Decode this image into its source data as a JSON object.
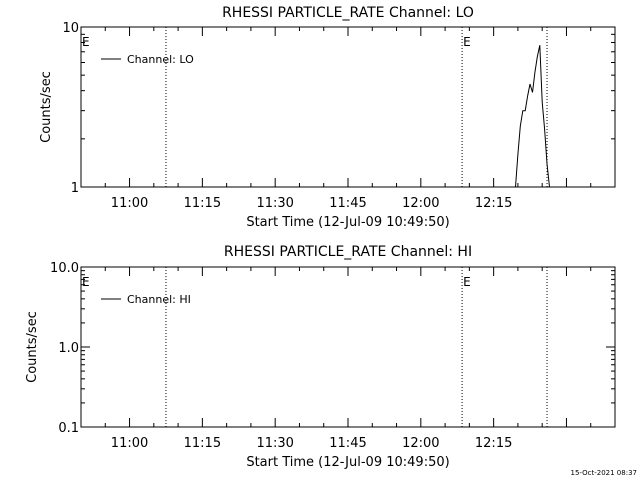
{
  "footer": {
    "timestamp": "15-Oct-2021 08:37"
  },
  "chart_data": [
    {
      "type": "line",
      "title": "RHESSI PARTICLE_RATE Channel: LO",
      "xlabel": "Start Time (12-Jul-09 10:49:50)",
      "ylabel": "Counts/sec",
      "y_scale": "log",
      "ylim": [
        1,
        10
      ],
      "xlim_minutes_after_1100": [
        -10,
        100
      ],
      "yticks": [
        {
          "value": 1,
          "label": "1"
        },
        {
          "value": 10,
          "label": "10"
        }
      ],
      "xticks": [
        {
          "minute": 0,
          "label": "11:00"
        },
        {
          "minute": 15,
          "label": "11:15"
        },
        {
          "minute": 30,
          "label": "11:30"
        },
        {
          "minute": 45,
          "label": "11:45"
        },
        {
          "minute": 60,
          "label": "12:00"
        },
        {
          "minute": 75,
          "label": "12:15"
        }
      ],
      "legend": {
        "label": "Channel: LO",
        "placement": "top-left"
      },
      "event_markers": [
        {
          "minute": -10,
          "label": "E"
        },
        {
          "minute": 7.5,
          "label": ""
        },
        {
          "minute": 68.5,
          "label": "E"
        },
        {
          "minute": 86,
          "label": ""
        }
      ],
      "series": [
        {
          "x_minutes": [
            79.5,
            80,
            80.5,
            81,
            81.5,
            82,
            82.5,
            83,
            83.5,
            84,
            84.5,
            85,
            85.5,
            86,
            86.5,
            87
          ],
          "y": [
            1,
            1.6,
            2.4,
            3,
            3,
            3.7,
            4.4,
            3.9,
            5.2,
            6.5,
            7.7,
            3.4,
            2.3,
            1.4,
            1,
            1
          ]
        }
      ]
    },
    {
      "type": "line",
      "title": "RHESSI PARTICLE_RATE Channel: HI",
      "xlabel": "Start Time (12-Jul-09 10:49:50)",
      "ylabel": "Counts/sec",
      "y_scale": "log",
      "ylim": [
        0.1,
        10
      ],
      "xlim_minutes_after_1100": [
        -10,
        100
      ],
      "yticks": [
        {
          "value": 0.1,
          "label": "0.1"
        },
        {
          "value": 1,
          "label": "1.0"
        },
        {
          "value": 10,
          "label": "10.0"
        }
      ],
      "xticks": [
        {
          "minute": 0,
          "label": "11:00"
        },
        {
          "minute": 15,
          "label": "11:15"
        },
        {
          "minute": 30,
          "label": "11:30"
        },
        {
          "minute": 45,
          "label": "11:45"
        },
        {
          "minute": 60,
          "label": "12:00"
        },
        {
          "minute": 75,
          "label": "12:15"
        }
      ],
      "legend": {
        "label": "Channel: HI",
        "placement": "top-left"
      },
      "event_markers": [
        {
          "minute": -10,
          "label": "E"
        },
        {
          "minute": 7.5,
          "label": ""
        },
        {
          "minute": 68.5,
          "label": "E"
        },
        {
          "minute": 86,
          "label": ""
        }
      ],
      "series": [
        {
          "x_minutes": [],
          "y": []
        }
      ]
    }
  ]
}
